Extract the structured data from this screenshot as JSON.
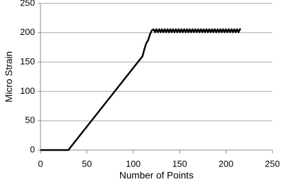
{
  "chart_data": {
    "type": "line",
    "xlabel": "Number of Points",
    "ylabel": "Micro Strain",
    "x": [
      0,
      30,
      110,
      112,
      114,
      116,
      118,
      120,
      122,
      123.5,
      125,
      126.5,
      128,
      129.5,
      131,
      132.5,
      134,
      135.5,
      137,
      138.5,
      140,
      141.5,
      143,
      144.5,
      146,
      147.5,
      149,
      150.5,
      152,
      153.5,
      155,
      156.5,
      158,
      159.5,
      161,
      162.5,
      164,
      165.5,
      167,
      168.5,
      170,
      171.5,
      173,
      174.5,
      176,
      177.5,
      179,
      180.5,
      182,
      183.5,
      185,
      186.5,
      188,
      189.5,
      191,
      192.5,
      194,
      195.5,
      197,
      198.5,
      200,
      201.5,
      203,
      204.5,
      206,
      207.5,
      209,
      210.5,
      212,
      213.5,
      215,
      216
    ],
    "series": [
      {
        "color": "#000000",
        "values": [
          0,
          0,
          160,
          172,
          182,
          187,
          197,
          204,
          206,
          201,
          206,
          201,
          206,
          201,
          206,
          201,
          206,
          201,
          206,
          201,
          206,
          201,
          206,
          201,
          206,
          201,
          206,
          201,
          206,
          201,
          206,
          201,
          206,
          201,
          206,
          201,
          206,
          201,
          206,
          201,
          206,
          201,
          206,
          201,
          206,
          201,
          206,
          201,
          206,
          201,
          206,
          201,
          206,
          201,
          206,
          201,
          206,
          201,
          206,
          201,
          206,
          201,
          206,
          201,
          206,
          201,
          206,
          201,
          206,
          201,
          206,
          206
        ]
      }
    ],
    "xlim": [
      0,
      250
    ],
    "xticks": [
      0,
      50,
      100,
      150,
      200,
      250
    ],
    "ylim": [
      0,
      250
    ],
    "yticks": [
      0,
      50,
      100,
      150,
      200,
      250
    ],
    "grid": true
  }
}
